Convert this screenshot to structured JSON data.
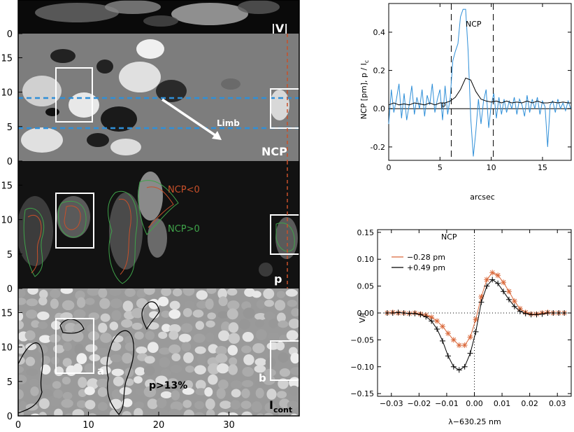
{
  "figure": {
    "left_panels": [
      {
        "id": "vlos",
        "label": "|V|",
        "yticks": [
          "0"
        ],
        "background": "#0a0a0a"
      },
      {
        "id": "ncp",
        "label": "NCP",
        "yticks": [
          "0",
          "5",
          "10",
          "15"
        ],
        "limb_label": "Limb",
        "background": "#7d7d7d"
      },
      {
        "id": "pol",
        "label": "p",
        "yticks": [
          "0",
          "5",
          "10",
          "15"
        ],
        "legend": [
          {
            "text": "NCP<0",
            "color": "#c8502a"
          },
          {
            "text": "NCP>0",
            "color": "#3fa34a"
          }
        ],
        "background": "#121212"
      },
      {
        "id": "cont",
        "label": "I",
        "label_sub": "cont",
        "yticks": [
          "0",
          "5",
          "10",
          "15"
        ],
        "box_labels": [
          "a",
          "b"
        ],
        "contour_label": "p>13%",
        "background": "#9a9a9a"
      }
    ],
    "left_xticks": [
      "0",
      "10",
      "20",
      "30"
    ],
    "colors": {
      "dashed_blue": "#2f8fd8",
      "box": "#ffffff",
      "ncp_line": "#2f8fd8",
      "p_line": "#000000",
      "orange": "#d9683a"
    }
  },
  "chart_data": [
    {
      "type": "line",
      "id": "top_right",
      "xlabel": "arcsec",
      "ylabel": "NCP [pm], p / I",
      "ylabel_sub": "c",
      "xlim": [
        0,
        17.8
      ],
      "ylim": [
        -0.27,
        0.55
      ],
      "xticks": [
        0,
        5,
        10,
        15
      ],
      "yticks": [
        -0.2,
        0.0,
        0.2,
        0.4
      ],
      "ytick_labels": [
        "-0.2",
        "0.0",
        "0.2",
        "0.4"
      ],
      "vlines": [
        6.1,
        10.2
      ],
      "series": [
        {
          "name": "NCP",
          "color": "#2f8fd8",
          "label_at": [
            7.5,
            0.43
          ],
          "x": [
            0,
            0.25,
            0.5,
            0.75,
            1.0,
            1.25,
            1.5,
            1.75,
            2.0,
            2.25,
            2.5,
            2.75,
            3.0,
            3.25,
            3.5,
            3.75,
            4.0,
            4.25,
            4.5,
            4.75,
            5.0,
            5.25,
            5.5,
            5.75,
            6.0,
            6.25,
            6.5,
            6.75,
            7.0,
            7.25,
            7.5,
            7.75,
            8.0,
            8.25,
            8.5,
            8.75,
            9.0,
            9.25,
            9.5,
            9.75,
            10.0,
            10.25,
            10.5,
            10.75,
            11.0,
            11.25,
            11.5,
            11.75,
            12.0,
            12.25,
            12.5,
            12.75,
            13.0,
            13.25,
            13.5,
            13.75,
            14.0,
            14.25,
            14.5,
            14.75,
            15.0,
            15.25,
            15.5,
            15.75,
            16.0,
            16.25,
            16.5,
            16.75,
            17.0,
            17.25,
            17.5,
            17.75
          ],
          "y": [
            -0.08,
            0.1,
            -0.02,
            0.05,
            0.13,
            -0.05,
            0.08,
            -0.06,
            0.02,
            0.12,
            -0.03,
            0.06,
            0.0,
            0.1,
            -0.04,
            0.07,
            0.02,
            0.13,
            -0.02,
            0.05,
            0.1,
            -0.06,
            0.12,
            -0.03,
            0.06,
            0.25,
            0.3,
            0.34,
            0.48,
            0.52,
            0.52,
            0.3,
            -0.05,
            -0.25,
            -0.12,
            0.05,
            -0.08,
            0.04,
            0.1,
            -0.1,
            0.02,
            0.08,
            -0.05,
            0.06,
            -0.03,
            0.05,
            -0.02,
            0.04,
            0.0,
            0.06,
            -0.03,
            0.05,
            0.02,
            -0.04,
            0.07,
            -0.02,
            0.05,
            0.0,
            0.06,
            -0.03,
            0.04,
            0.01,
            -0.2,
            0.02,
            0.04,
            -0.02,
            0.05,
            0.0,
            0.03,
            -0.01,
            0.04,
            0.0
          ]
        },
        {
          "name": "p",
          "color": "#000000",
          "label_at": [
            5.1,
            0.01
          ],
          "x": [
            0,
            0.5,
            1.0,
            1.5,
            2.0,
            2.5,
            3.0,
            3.5,
            4.0,
            4.5,
            5.0,
            5.5,
            6.0,
            6.5,
            7.0,
            7.5,
            8.0,
            8.5,
            9.0,
            9.5,
            10.0,
            10.5,
            11.0,
            11.5,
            12.0,
            12.5,
            13.0,
            13.5,
            14.0,
            14.5,
            15.0,
            15.5,
            16.0,
            16.5,
            17.0,
            17.5,
            17.8
          ],
          "y": [
            0.02,
            0.03,
            0.02,
            0.025,
            0.02,
            0.03,
            0.025,
            0.02,
            0.03,
            0.02,
            0.03,
            0.03,
            0.04,
            0.06,
            0.1,
            0.16,
            0.15,
            0.09,
            0.05,
            0.04,
            0.035,
            0.04,
            0.03,
            0.04,
            0.03,
            0.035,
            0.03,
            0.04,
            0.03,
            0.04,
            0.03,
            0.03,
            0.035,
            0.03,
            0.035,
            0.03,
            0.03
          ]
        }
      ]
    },
    {
      "type": "line",
      "id": "bottom_right",
      "title": "NCP",
      "xlabel": "λ−630.25 nm",
      "ylabel": "V/I",
      "xlim": [
        -0.035,
        0.035
      ],
      "ylim": [
        -0.155,
        0.155
      ],
      "xticks": [
        -0.03,
        -0.02,
        -0.01,
        0.0,
        0.01,
        0.02,
        0.03
      ],
      "xtick_labels": [
        "−0.03",
        "−0.02",
        "−0.01",
        "0.00",
        "0.01",
        "0.02",
        "0.03"
      ],
      "yticks": [
        -0.15,
        -0.1,
        -0.05,
        0.0,
        0.05,
        0.1,
        0.15
      ],
      "ytick_labels": [
        "−0.15",
        "−0.10",
        "−0.05",
        "0.00",
        "0.05",
        "0.10",
        "0.15"
      ],
      "legend": [
        "−0.28 pm",
        "+0.49 pm"
      ],
      "series": [
        {
          "name": "−0.28 pm",
          "color": "#d9683a",
          "marker": "asterisk",
          "x": [
            -0.0315,
            -0.0295,
            -0.0275,
            -0.0255,
            -0.0235,
            -0.0215,
            -0.0195,
            -0.0175,
            -0.0155,
            -0.0135,
            -0.0115,
            -0.0095,
            -0.0075,
            -0.0055,
            -0.0035,
            -0.0015,
            0.0005,
            0.0025,
            0.0045,
            0.0065,
            0.0085,
            0.0105,
            0.0125,
            0.0145,
            0.0165,
            0.0185,
            0.0205,
            0.0225,
            0.0245,
            0.0265,
            0.0285,
            0.0305,
            0.0325
          ],
          "y": [
            0.0,
            0.001,
            0.0,
            0.0,
            -0.001,
            0.0,
            -0.002,
            -0.004,
            -0.008,
            -0.015,
            -0.025,
            -0.038,
            -0.05,
            -0.06,
            -0.06,
            -0.045,
            -0.012,
            0.03,
            0.062,
            0.075,
            0.07,
            0.057,
            0.04,
            0.022,
            0.008,
            0.001,
            -0.002,
            -0.002,
            0.0,
            0.001,
            0.0,
            0.0,
            0.0
          ]
        },
        {
          "name": "+0.49 pm",
          "color": "#000000",
          "marker": "plus",
          "x": [
            -0.0315,
            -0.0295,
            -0.0275,
            -0.0255,
            -0.0235,
            -0.0215,
            -0.0195,
            -0.0175,
            -0.0155,
            -0.0135,
            -0.0115,
            -0.0095,
            -0.0075,
            -0.0055,
            -0.0035,
            -0.0015,
            0.0005,
            0.0025,
            0.0045,
            0.0065,
            0.0085,
            0.0105,
            0.0125,
            0.0145,
            0.0165,
            0.0185,
            0.0205,
            0.0225,
            0.0245,
            0.0265,
            0.0285,
            0.0305,
            0.0325
          ],
          "y": [
            0.0,
            0.0,
            0.001,
            0.0,
            -0.001,
            -0.001,
            -0.003,
            -0.007,
            -0.015,
            -0.03,
            -0.052,
            -0.08,
            -0.1,
            -0.106,
            -0.1,
            -0.075,
            -0.035,
            0.02,
            0.05,
            0.062,
            0.055,
            0.04,
            0.025,
            0.012,
            0.003,
            -0.001,
            -0.003,
            -0.003,
            -0.002,
            0.0,
            0.0,
            0.0,
            0.0
          ]
        }
      ]
    }
  ]
}
